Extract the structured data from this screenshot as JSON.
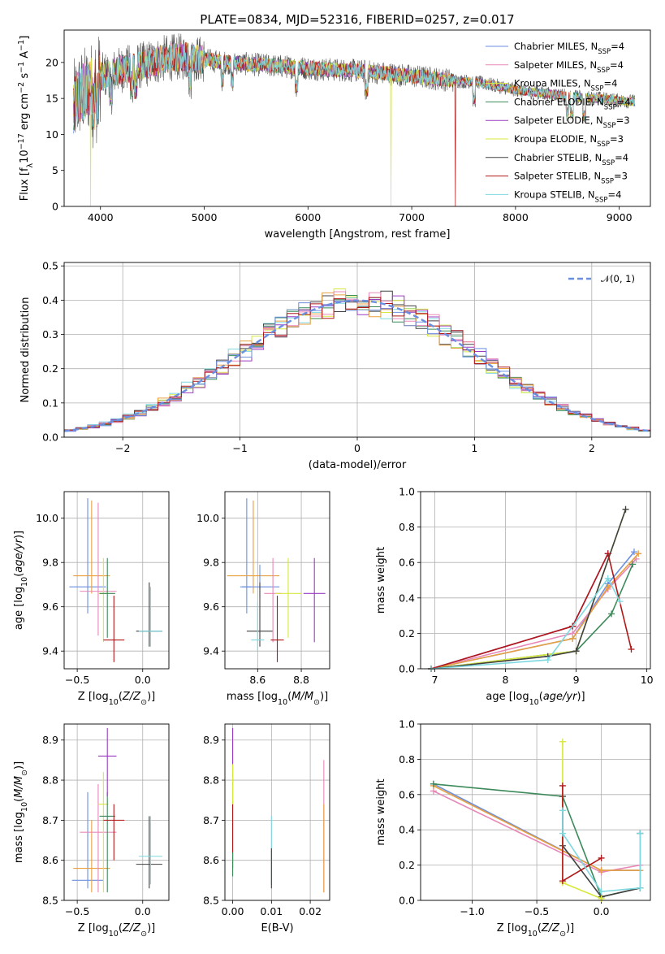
{
  "figure": {
    "title": "PLATE=0834, MJD=52316, FIBERID=0257, z=0.017"
  },
  "colors": {
    "c0": "#6b8fe0",
    "c1": "#e888b8",
    "c2": "#e8a040",
    "c3": "#3c8a5a",
    "c4": "#9a3cc0",
    "c5": "#d8e840",
    "c6": "#404040",
    "c7": "#b01818",
    "c8": "#7fd8e0",
    "grid": "#b0b0b0"
  },
  "chart_data": [
    {
      "id": "spectrum",
      "type": "line",
      "xlabel": "wavelength [Angstrom, rest frame]",
      "ylabel": "Flux [f_λ10^-17 erg cm^-2 s^-1 A^-1]",
      "xlim": [
        3650,
        9300
      ],
      "ylim": [
        0,
        24.5
      ],
      "xticks": [
        4000,
        5000,
        6000,
        7000,
        8000,
        9000
      ],
      "yticks": [
        0,
        5,
        10,
        15,
        20
      ],
      "grid": false,
      "legend_placement": "upper-right",
      "legend": [
        {
          "name": "Chabrier MILES, N",
          "sub": "SSP",
          "suffix": "=4",
          "color": "c0"
        },
        {
          "name": "Salpeter MILES, N",
          "sub": "SSP",
          "suffix": "=4",
          "color": "c1"
        },
        {
          "name": "Kroupa MILES, N",
          "sub": "SSP",
          "suffix": "=4",
          "color": "c5"
        },
        {
          "name": "Chabrier ELODIE, N",
          "sub": "SSP",
          "suffix": "=4",
          "color": "c3"
        },
        {
          "name": "Salpeter ELODIE, N",
          "sub": "SSP",
          "suffix": "=3",
          "color": "c4"
        },
        {
          "name": "Kroupa ELODIE, N",
          "sub": "SSP",
          "suffix": "=3",
          "color": "c5"
        },
        {
          "name": "Chabrier STELIB, N",
          "sub": "SSP",
          "suffix": "=4",
          "color": "c6"
        },
        {
          "name": "Salpeter STELIB, N",
          "sub": "SSP",
          "suffix": "=3",
          "color": "c7"
        },
        {
          "name": "Kroupa STELIB, N",
          "sub": "SSP",
          "suffix": "=4",
          "color": "c8"
        }
      ],
      "continuum": {
        "wavelength": [
          3740,
          3800,
          3900,
          4000,
          4100,
          4200,
          4300,
          4400,
          4500,
          4600,
          4700,
          4800,
          4900,
          5000,
          5200,
          5400,
          5600,
          5800,
          6000,
          6200,
          6400,
          6600,
          6800,
          7000,
          7200,
          7400,
          7600,
          7800,
          8000,
          8200,
          8400,
          8600,
          8800,
          9000,
          9200
        ],
        "flux": [
          14.0,
          15.5,
          16.5,
          18.0,
          18.5,
          19.0,
          19.3,
          19.6,
          20.0,
          20.5,
          20.7,
          20.8,
          20.6,
          20.4,
          20.0,
          19.8,
          19.6,
          19.4,
          19.2,
          19.0,
          18.9,
          18.7,
          18.4,
          18.1,
          17.8,
          17.5,
          17.3,
          16.8,
          16.2,
          15.8,
          15.5,
          15.2,
          15.0,
          14.7,
          14.5
        ]
      },
      "dropouts": [
        {
          "wavelength": 3905,
          "flux": 0,
          "series": "c5"
        },
        {
          "wavelength": 6800,
          "flux": 0,
          "series": "c5"
        },
        {
          "wavelength": 7420,
          "flux": 0,
          "series": "c7"
        }
      ]
    },
    {
      "id": "residuals",
      "type": "histogram",
      "xlabel": "(data-model)/error",
      "ylabel": "Normed distribution",
      "xlim": [
        -2.5,
        2.5
      ],
      "ylim": [
        0,
        0.51
      ],
      "xticks": [
        -2,
        -1,
        0,
        1,
        2
      ],
      "yticks": [
        0.0,
        0.1,
        0.2,
        0.3,
        0.4,
        0.5
      ],
      "grid": true,
      "bin_width": 0.1,
      "legend_placement": "upper-right",
      "legend": [
        {
          "name": "𝒩(0, 1)",
          "color": "c0",
          "dash": true
        }
      ],
      "reference_curve": {
        "type": "gaussian",
        "mu": 0,
        "sigma": 1
      }
    },
    {
      "id": "age_vs_Z",
      "type": "errorbar",
      "xlabel": "Z [log10(Z/Z⊙)]",
      "ylabel": "age  [log10(age/yr)]",
      "xlim": [
        -0.6,
        0.2
      ],
      "ylim": [
        9.32,
        10.12
      ],
      "xticks": [
        -0.5,
        0.0
      ],
      "yticks": [
        9.4,
        9.6,
        9.8,
        10.0
      ],
      "points": [
        {
          "x": -0.42,
          "y": 9.69,
          "xerr": 0.14,
          "yerr": [
            0.12,
            0.4
          ],
          "color": "c0"
        },
        {
          "x": -0.39,
          "y": 9.74,
          "xerr": 0.14,
          "yerr": [
            0.08,
            0.34
          ],
          "color": "c2"
        },
        {
          "x": -0.34,
          "y": 9.67,
          "xerr": 0.14,
          "yerr": [
            0.2,
            0.4
          ],
          "color": "c1"
        },
        {
          "x": -0.3,
          "y": 9.66,
          "xerr": 0.04,
          "yerr": [
            0.22,
            0.16
          ],
          "color": "c5"
        },
        {
          "x": -0.27,
          "y": 9.66,
          "xerr": 0.06,
          "yerr": [
            0.2,
            0.16
          ],
          "color": "c3"
        },
        {
          "x": -0.22,
          "y": 9.45,
          "xerr": 0.08,
          "yerr": [
            0.1,
            0.2
          ],
          "color": "c7"
        },
        {
          "x": 0.05,
          "y": 9.49,
          "xerr": 0.1,
          "yerr": [
            0.07,
            0.22
          ],
          "color": "c6"
        },
        {
          "x": 0.06,
          "y": 9.49,
          "xerr": 0.09,
          "yerr": [
            0.07,
            0.2
          ],
          "color": "c8"
        }
      ]
    },
    {
      "id": "age_vs_mass",
      "type": "errorbar",
      "xlabel": "mass [log10(M/M⊙)]",
      "ylabel": "",
      "xlim": [
        8.45,
        8.93
      ],
      "ylim": [
        9.32,
        10.12
      ],
      "xticks": [
        8.6,
        8.8
      ],
      "yticks": [
        9.4,
        9.6,
        9.8,
        10.0
      ],
      "points": [
        {
          "x": 8.55,
          "y": 9.69,
          "xerr": 0.02,
          "yerr": [
            0.12,
            0.4
          ],
          "color": "c0"
        },
        {
          "x": 8.58,
          "y": 9.74,
          "xerr": 0.12,
          "yerr": [
            0.08,
            0.34
          ],
          "color": "c2"
        },
        {
          "x": 8.61,
          "y": 9.69,
          "xerr": 0.09,
          "yerr": [
            0.05,
            0.1
          ],
          "color": "c0"
        },
        {
          "x": 8.61,
          "y": 9.49,
          "xerr": 0.06,
          "yerr": [
            0.07,
            0.22
          ],
          "color": "c6"
        },
        {
          "x": 8.6,
          "y": 9.45,
          "xerr": 0.03,
          "yerr": [
            0.05,
            0.17
          ],
          "color": "c8"
        },
        {
          "x": 8.67,
          "y": 9.66,
          "xerr": 0.04,
          "yerr": [
            0.22,
            0.16
          ],
          "color": "c1"
        },
        {
          "x": 8.69,
          "y": 9.45,
          "xerr": 0.03,
          "yerr": [
            0.1,
            0.2
          ],
          "color": "c7"
        },
        {
          "x": 8.74,
          "y": 9.66,
          "xerr": 0.06,
          "yerr": [
            0.2,
            0.16
          ],
          "color": "c5"
        },
        {
          "x": 8.86,
          "y": 9.66,
          "xerr": 0.05,
          "yerr": [
            0.22,
            0.16
          ],
          "color": "c4"
        }
      ]
    },
    {
      "id": "massweight_vs_age",
      "type": "line",
      "xlabel": "age  [log10(age/yr)]",
      "ylabel": "mass weight",
      "xlim": [
        6.8,
        10.05
      ],
      "ylim": [
        0,
        1.0
      ],
      "xticks": [
        7,
        8,
        9,
        10
      ],
      "yticks": [
        0.0,
        0.2,
        0.4,
        0.6,
        0.8,
        1.0
      ],
      "grid": true,
      "series": [
        {
          "color": "c0",
          "x": [
            6.95,
            8.95,
            9.45,
            9.82
          ],
          "y": [
            0.0,
            0.17,
            0.48,
            0.66
          ]
        },
        {
          "color": "c1",
          "x": [
            6.95,
            8.95,
            9.45,
            9.85
          ],
          "y": [
            0.0,
            0.2,
            0.45,
            0.62
          ]
        },
        {
          "color": "c2",
          "x": [
            6.95,
            8.95,
            9.45,
            9.88
          ],
          "y": [
            0.0,
            0.17,
            0.46,
            0.65
          ]
        },
        {
          "color": "c3",
          "x": [
            6.95,
            9.0,
            9.5,
            9.8
          ],
          "y": [
            0.0,
            0.1,
            0.31,
            0.59
          ]
        },
        {
          "color": "c4",
          "x": [
            6.95,
            8.95,
            9.45
          ],
          "y": [
            0.0,
            0.24,
            0.65
          ]
        },
        {
          "color": "c5",
          "x": [
            6.95,
            9.0,
            9.7
          ],
          "y": [
            0.0,
            0.1,
            0.9
          ]
        },
        {
          "color": "c6",
          "x": [
            6.95,
            8.6,
            9.0,
            9.7
          ],
          "y": [
            0.0,
            0.07,
            0.1,
            0.9
          ]
        },
        {
          "color": "c7",
          "x": [
            6.95,
            8.95,
            9.45,
            9.78
          ],
          "y": [
            0.0,
            0.24,
            0.65,
            0.11
          ]
        },
        {
          "color": "c8",
          "x": [
            6.95,
            8.6,
            9.45,
            9.62
          ],
          "y": [
            0.0,
            0.05,
            0.51,
            0.38
          ]
        }
      ]
    },
    {
      "id": "mass_vs_Z",
      "type": "errorbar",
      "xlabel": "Z [log10(Z/Z⊙)]",
      "ylabel": "mass [log10(M/M⊙)]",
      "xlim": [
        -0.6,
        0.2
      ],
      "ylim": [
        8.5,
        8.94
      ],
      "xticks": [
        -0.5,
        0.0
      ],
      "yticks": [
        8.5,
        8.6,
        8.7,
        8.8,
        8.9
      ],
      "points": [
        {
          "x": -0.42,
          "y": 8.55,
          "xerr": 0.12,
          "yerr": [
            0.02,
            0.22
          ],
          "color": "c0"
        },
        {
          "x": -0.39,
          "y": 8.58,
          "xerr": 0.14,
          "yerr": [
            0.06,
            0.12
          ],
          "color": "c2"
        },
        {
          "x": -0.34,
          "y": 8.67,
          "xerr": 0.14,
          "yerr": [
            0.15,
            0.12
          ],
          "color": "c1"
        },
        {
          "x": -0.3,
          "y": 8.74,
          "xerr": 0.04,
          "yerr": [
            0.22,
            0.08
          ],
          "color": "c5"
        },
        {
          "x": -0.27,
          "y": 8.71,
          "xerr": 0.06,
          "yerr": [
            0.19,
            0.06
          ],
          "color": "c3"
        },
        {
          "x": -0.27,
          "y": 8.86,
          "xerr": 0.07,
          "yerr": [
            0.1,
            0.07
          ],
          "color": "c4"
        },
        {
          "x": -0.22,
          "y": 8.7,
          "xerr": 0.08,
          "yerr": [
            0.1,
            0.04
          ],
          "color": "c7"
        },
        {
          "x": 0.05,
          "y": 8.59,
          "xerr": 0.1,
          "yerr": [
            0.06,
            0.12
          ],
          "color": "c6"
        },
        {
          "x": 0.06,
          "y": 8.61,
          "xerr": 0.09,
          "yerr": [
            0.07,
            0.1
          ],
          "color": "c8"
        }
      ]
    },
    {
      "id": "mass_vs_ebv",
      "type": "errorbar",
      "xlabel": "E(B-V)",
      "ylabel": "",
      "xlim": [
        -0.002,
        0.025
      ],
      "ylim": [
        8.5,
        8.94
      ],
      "xticks": [
        0.0,
        0.01,
        0.02
      ],
      "yticks": [
        8.5,
        8.6,
        8.7,
        8.8,
        8.9
      ],
      "points": [
        {
          "x": 0.0,
          "y": 8.84,
          "xerr": 0,
          "yerr": [
            0.1,
            0.09
          ],
          "color": "c4"
        },
        {
          "x": 0.0,
          "y": 8.7,
          "xerr": 0,
          "yerr": [
            0.14,
            0.14
          ],
          "color": "c5"
        },
        {
          "x": 0.0,
          "y": 8.66,
          "xerr": 0,
          "yerr": [
            0.08,
            0.08
          ],
          "color": "c7"
        },
        {
          "x": 0.0,
          "y": 8.59,
          "xerr": 0,
          "yerr": [
            0.03,
            0.03
          ],
          "color": "c3"
        },
        {
          "x": 0.01,
          "y": 8.61,
          "xerr": 0,
          "yerr": [
            0.07,
            0.1
          ],
          "color": "c8"
        },
        {
          "x": 0.01,
          "y": 8.58,
          "xerr": 0,
          "yerr": [
            0.05,
            0.05
          ],
          "color": "c6"
        },
        {
          "x": 0.0235,
          "y": 8.7,
          "xerr": 0,
          "yerr": [
            0.18,
            0.15
          ],
          "color": "c1"
        },
        {
          "x": 0.0235,
          "y": 8.63,
          "xerr": 0,
          "yerr": [
            0.11,
            0.11
          ],
          "color": "c2"
        }
      ]
    },
    {
      "id": "massweight_vs_Z",
      "type": "line",
      "xlabel": "Z [log10(Z/Z⊙)]",
      "ylabel": "mass weight",
      "xlim": [
        -1.4,
        0.38
      ],
      "ylim": [
        0,
        1.0
      ],
      "xticks": [
        -1.0,
        -0.5,
        0.0
      ],
      "yticks": [
        0.0,
        0.2,
        0.4,
        0.6,
        0.8,
        1.0
      ],
      "grid": true,
      "series": [
        {
          "color": "c0",
          "x": [
            -1.3,
            0.0,
            0.3
          ],
          "y": [
            0.66,
            0.17,
            0.17
          ]
        },
        {
          "color": "c1",
          "x": [
            -1.3,
            0.0,
            0.3
          ],
          "y": [
            0.62,
            0.16,
            0.2
          ]
        },
        {
          "color": "c2",
          "x": [
            -1.3,
            0.0,
            0.3
          ],
          "y": [
            0.65,
            0.17,
            0.17
          ]
        },
        {
          "color": "c3",
          "x": [
            -1.3,
            -0.3,
            0.0,
            0.3
          ],
          "y": [
            0.66,
            0.59,
            0.02,
            0.07
          ]
        },
        {
          "color": "c6",
          "x": [
            -0.3,
            -0.3,
            0.0,
            0.3,
            0.3
          ],
          "y": [
            0.59,
            0.31,
            0.02,
            0.07,
            0.38
          ]
        },
        {
          "color": "c5",
          "x": [
            -0.3,
            -0.3,
            0.0
          ],
          "y": [
            0.9,
            0.1,
            0.01
          ]
        },
        {
          "color": "c7",
          "x": [
            -0.3,
            -0.3,
            0.0
          ],
          "y": [
            0.65,
            0.11,
            0.24
          ]
        },
        {
          "color": "c8",
          "x": [
            -0.3,
            -0.3,
            0.0,
            0.3,
            0.3
          ],
          "y": [
            0.51,
            0.38,
            0.05,
            0.07,
            0.38
          ]
        }
      ]
    }
  ]
}
